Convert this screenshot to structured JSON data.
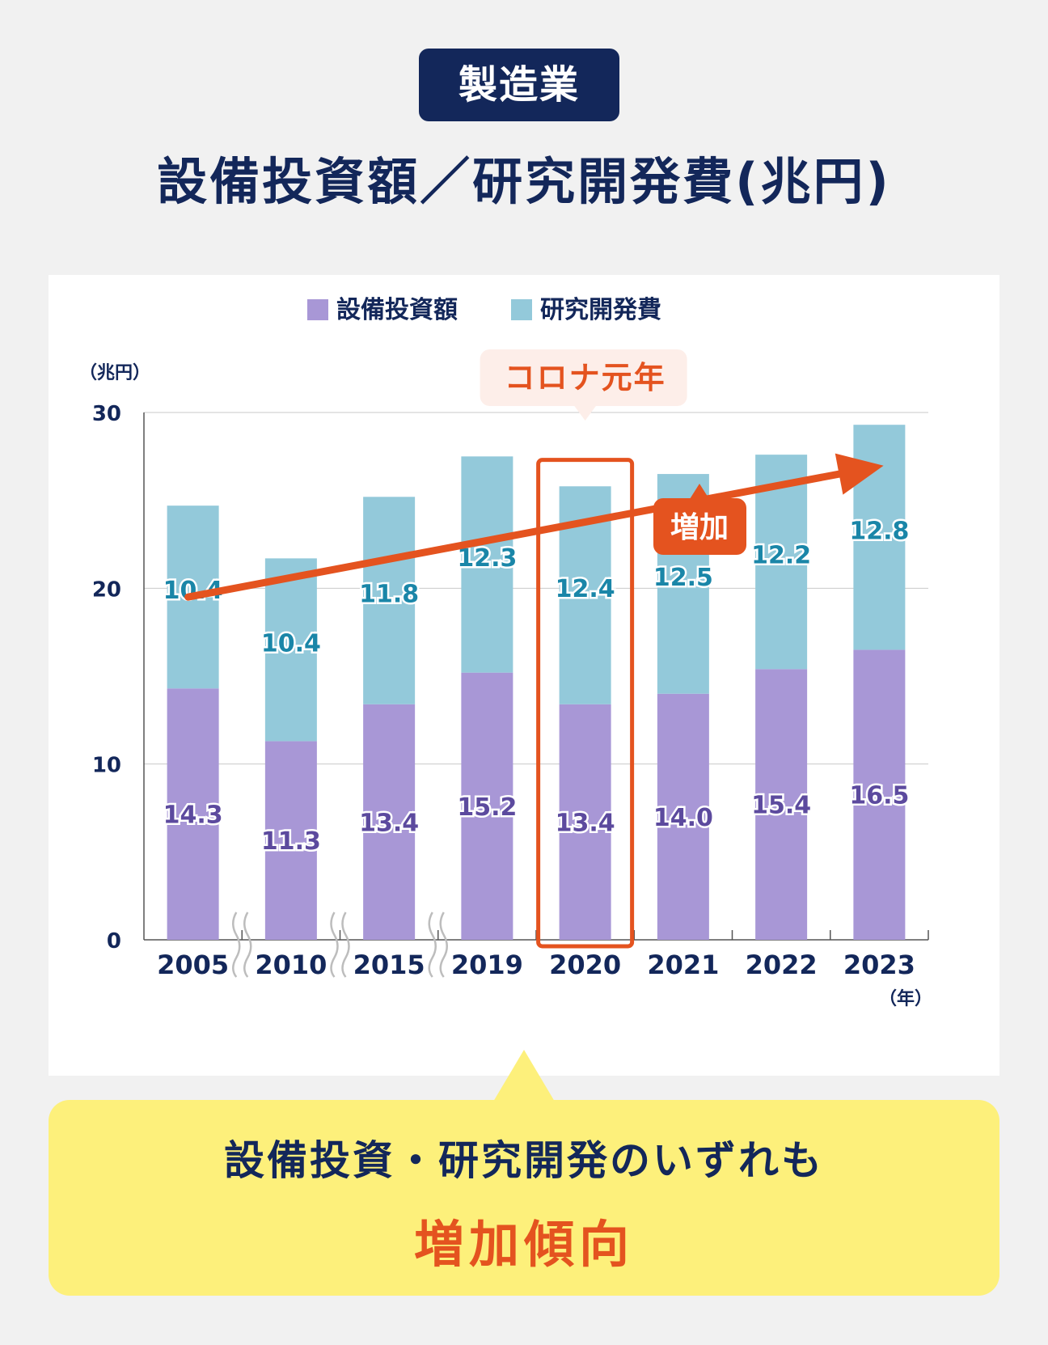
{
  "header": {
    "badge": "製造業",
    "title": "設備投資額／研究開発費(兆円)"
  },
  "colors": {
    "navy": "#13275a",
    "capex": "#a897d6",
    "rnd": "#93c9da",
    "capex_label": "#5c4a9e",
    "rnd_label": "#1a86a8",
    "accent": "#e4531f",
    "callout_bg": "#fdeee9",
    "conclusion_bg": "#fdf07b"
  },
  "chart_data": {
    "type": "bar",
    "stacked": true,
    "unit_label": "（兆円）",
    "x_unit_label": "（年）",
    "categories": [
      "2005",
      "2010",
      "2015",
      "2019",
      "2020",
      "2021",
      "2022",
      "2023"
    ],
    "series": [
      {
        "name": "設備投資額",
        "values": [
          14.3,
          11.3,
          13.4,
          15.2,
          13.4,
          14.0,
          15.4,
          16.5
        ],
        "labels": [
          "14.3",
          "11.3",
          "13.4",
          "15.2",
          "13.4",
          "14.0",
          "15.4",
          "16.5"
        ]
      },
      {
        "name": "研究開発費",
        "values": [
          10.4,
          10.4,
          11.8,
          12.3,
          12.4,
          12.5,
          12.2,
          12.8
        ],
        "labels": [
          "10.4",
          "10.4",
          "11.8",
          "12.3",
          "12.4",
          "12.5",
          "12.2",
          "12.8"
        ]
      }
    ],
    "ylim": [
      0,
      30
    ],
    "yticks": [
      "0",
      "10",
      "20",
      "30"
    ],
    "grid": true,
    "legend": "top-center",
    "axis_breaks_after": [
      "2005",
      "2010",
      "2015"
    ],
    "highlight": {
      "category": "2020",
      "label": "コロナ元年"
    },
    "trend_arrow": {
      "label": "増加",
      "from_year": "2005",
      "to_year": "2023"
    }
  },
  "conclusion": {
    "line1": "設備投資・研究開発のいずれも",
    "line2": "増加傾向"
  }
}
